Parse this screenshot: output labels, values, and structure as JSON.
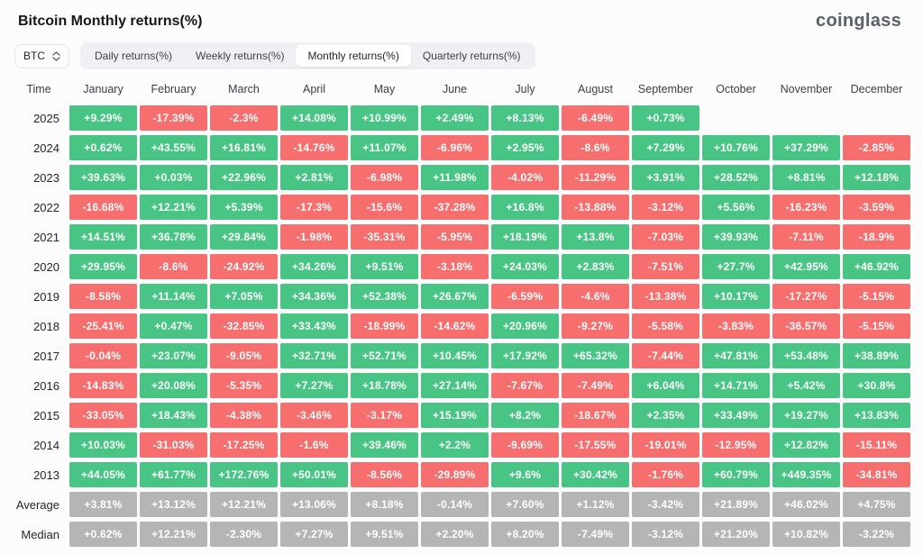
{
  "header": {
    "title": "Bitcoin Monthly returns(%)",
    "logo": "coinglass"
  },
  "toolbar": {
    "coin_selector": "BTC",
    "tabs": [
      {
        "label": "Daily returns(%)",
        "active": false
      },
      {
        "label": "Weekly returns(%)",
        "active": false
      },
      {
        "label": "Monthly returns(%)",
        "active": true
      },
      {
        "label": "Quarterly returns(%)",
        "active": false
      }
    ]
  },
  "colors": {
    "positive": "#48C584",
    "negative": "#F76E6E",
    "summary": "#B5B5B5"
  },
  "chart_data": {
    "type": "heatmap",
    "title": "Bitcoin Monthly returns(%)",
    "columns": [
      "Time",
      "January",
      "February",
      "March",
      "April",
      "May",
      "June",
      "July",
      "August",
      "September",
      "October",
      "November",
      "December"
    ],
    "rows": [
      {
        "label": "2025",
        "type": "year",
        "values": [
          "+9.29%",
          "-17.39%",
          "-2.3%",
          "+14.08%",
          "+10.99%",
          "+2.49%",
          "+8.13%",
          "-6.49%",
          "+0.73%",
          "",
          "",
          ""
        ]
      },
      {
        "label": "2024",
        "type": "year",
        "values": [
          "+0.62%",
          "+43.55%",
          "+16.81%",
          "-14.76%",
          "+11.07%",
          "-6.96%",
          "+2.95%",
          "-8.6%",
          "+7.29%",
          "+10.76%",
          "+37.29%",
          "-2.85%"
        ]
      },
      {
        "label": "2023",
        "type": "year",
        "values": [
          "+39.63%",
          "+0.03%",
          "+22.96%",
          "+2.81%",
          "-6.98%",
          "+11.98%",
          "-4.02%",
          "-11.29%",
          "+3.91%",
          "+28.52%",
          "+8.81%",
          "+12.18%"
        ]
      },
      {
        "label": "2022",
        "type": "year",
        "values": [
          "-16.68%",
          "+12.21%",
          "+5.39%",
          "-17.3%",
          "-15.6%",
          "-37.28%",
          "+16.8%",
          "-13.88%",
          "-3.12%",
          "+5.56%",
          "-16.23%",
          "-3.59%"
        ]
      },
      {
        "label": "2021",
        "type": "year",
        "values": [
          "+14.51%",
          "+36.78%",
          "+29.84%",
          "-1.98%",
          "-35.31%",
          "-5.95%",
          "+18.19%",
          "+13.8%",
          "-7.03%",
          "+39.93%",
          "-7.11%",
          "-18.9%"
        ]
      },
      {
        "label": "2020",
        "type": "year",
        "values": [
          "+29.95%",
          "-8.6%",
          "-24.92%",
          "+34.26%",
          "+9.51%",
          "-3.18%",
          "+24.03%",
          "+2.83%",
          "-7.51%",
          "+27.7%",
          "+42.95%",
          "+46.92%"
        ]
      },
      {
        "label": "2019",
        "type": "year",
        "values": [
          "-8.58%",
          "+11.14%",
          "+7.05%",
          "+34.36%",
          "+52.38%",
          "+26.67%",
          "-6.59%",
          "-4.6%",
          "-13.38%",
          "+10.17%",
          "-17.27%",
          "-5.15%"
        ]
      },
      {
        "label": "2018",
        "type": "year",
        "values": [
          "-25.41%",
          "+0.47%",
          "-32.85%",
          "+33.43%",
          "-18.99%",
          "-14.62%",
          "+20.96%",
          "-9.27%",
          "-5.58%",
          "-3.83%",
          "-36.57%",
          "-5.15%"
        ]
      },
      {
        "label": "2017",
        "type": "year",
        "values": [
          "-0.04%",
          "+23.07%",
          "-9.05%",
          "+32.71%",
          "+52.71%",
          "+10.45%",
          "+17.92%",
          "+65.32%",
          "-7.44%",
          "+47.81%",
          "+53.48%",
          "+38.89%"
        ]
      },
      {
        "label": "2016",
        "type": "year",
        "values": [
          "-14.83%",
          "+20.08%",
          "-5.35%",
          "+7.27%",
          "+18.78%",
          "+27.14%",
          "-7.67%",
          "-7.49%",
          "+6.04%",
          "+14.71%",
          "+5.42%",
          "+30.8%"
        ]
      },
      {
        "label": "2015",
        "type": "year",
        "values": [
          "-33.05%",
          "+18.43%",
          "-4.38%",
          "-3.46%",
          "-3.17%",
          "+15.19%",
          "+8.2%",
          "-18.67%",
          "+2.35%",
          "+33.49%",
          "+19.27%",
          "+13.83%"
        ]
      },
      {
        "label": "2014",
        "type": "year",
        "values": [
          "+10.03%",
          "-31.03%",
          "-17.25%",
          "-1.6%",
          "+39.46%",
          "+2.2%",
          "-9.69%",
          "-17.55%",
          "-19.01%",
          "-12.95%",
          "+12.82%",
          "-15.11%"
        ]
      },
      {
        "label": "2013",
        "type": "year",
        "values": [
          "+44.05%",
          "+61.77%",
          "+172.76%",
          "+50.01%",
          "-8.56%",
          "-29.89%",
          "+9.6%",
          "+30.42%",
          "-1.76%",
          "+60.79%",
          "+449.35%",
          "-34.81%"
        ]
      },
      {
        "label": "Average",
        "type": "summary",
        "values": [
          "+3.81%",
          "+13.12%",
          "+12.21%",
          "+13.06%",
          "+8.18%",
          "-0.14%",
          "+7.60%",
          "+1.12%",
          "-3.42%",
          "+21.89%",
          "+46.02%",
          "+4.75%"
        ]
      },
      {
        "label": "Median",
        "type": "summary",
        "values": [
          "+0.62%",
          "+12.21%",
          "-2.30%",
          "+7.27%",
          "+9.51%",
          "+2.20%",
          "+8.20%",
          "-7.49%",
          "-3.12%",
          "+21.20%",
          "+10.82%",
          "-3.22%"
        ]
      }
    ]
  }
}
